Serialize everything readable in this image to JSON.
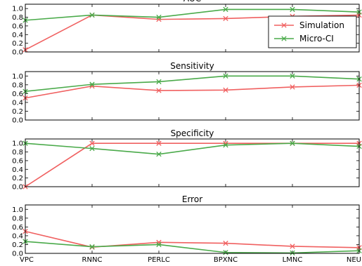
{
  "chart_data": [
    {
      "type": "line",
      "title": "AUC",
      "categories": [
        "VPC",
        "RNNC",
        "PERLC",
        "BPXNC",
        "LMNC",
        "NEU"
      ],
      "ylim": [
        0,
        1.1
      ],
      "yticks": [
        "0.0",
        "0.2",
        "0.4",
        "0.6",
        "0.8",
        "1.0"
      ],
      "grid": false,
      "legend": "right",
      "series": [
        {
          "name": "Simulation",
          "values": [
            0.05,
            0.85,
            0.75,
            0.77,
            0.82,
            0.85
          ]
        },
        {
          "name": "Micro-CI",
          "values": [
            0.73,
            0.85,
            0.8,
            0.98,
            0.98,
            0.92
          ]
        }
      ]
    },
    {
      "type": "line",
      "title": "Sensitivity",
      "categories": [
        "VPC",
        "RNNC",
        "PERLC",
        "BPXNC",
        "LMNC",
        "NEU"
      ],
      "ylim": [
        0,
        1.1
      ],
      "yticks": [
        "0.0",
        "0.2",
        "0.4",
        "0.6",
        "0.8",
        "1.0"
      ],
      "grid": false,
      "series": [
        {
          "name": "Simulation",
          "values": [
            0.5,
            0.77,
            0.67,
            0.68,
            0.75,
            0.79
          ]
        },
        {
          "name": "Micro-CI",
          "values": [
            0.65,
            0.81,
            0.87,
            1.0,
            1.0,
            0.93
          ]
        }
      ]
    },
    {
      "type": "line",
      "title": "Specificity",
      "categories": [
        "VPC",
        "RNNC",
        "PERLC",
        "BPXNC",
        "LMNC",
        "NEU"
      ],
      "ylim": [
        0,
        1.1
      ],
      "yticks": [
        "0.0",
        "0.2",
        "0.4",
        "0.6",
        "0.8",
        "1.0"
      ],
      "grid": false,
      "series": [
        {
          "name": "Simulation",
          "values": [
            0.0,
            1.0,
            1.0,
            1.0,
            1.0,
            1.0
          ]
        },
        {
          "name": "Micro-CI",
          "values": [
            1.0,
            0.88,
            0.75,
            0.96,
            1.0,
            0.93
          ]
        }
      ]
    },
    {
      "type": "line",
      "title": "Error",
      "categories": [
        "VPC",
        "RNNC",
        "PERLC",
        "BPXNC",
        "LMNC",
        "NEU"
      ],
      "ylim": [
        0,
        1.1
      ],
      "yticks": [
        "0.0",
        "0.2",
        "0.4",
        "0.6",
        "0.8",
        "1.0"
      ],
      "grid": false,
      "series": [
        {
          "name": "Simulation",
          "values": [
            0.5,
            0.14,
            0.25,
            0.23,
            0.16,
            0.13
          ]
        },
        {
          "name": "Micro-CI",
          "values": [
            0.27,
            0.15,
            0.2,
            0.02,
            0.01,
            0.06
          ]
        }
      ]
    }
  ],
  "colors": {
    "Simulation": "#f06060",
    "Micro-CI": "#4aaa4a"
  }
}
